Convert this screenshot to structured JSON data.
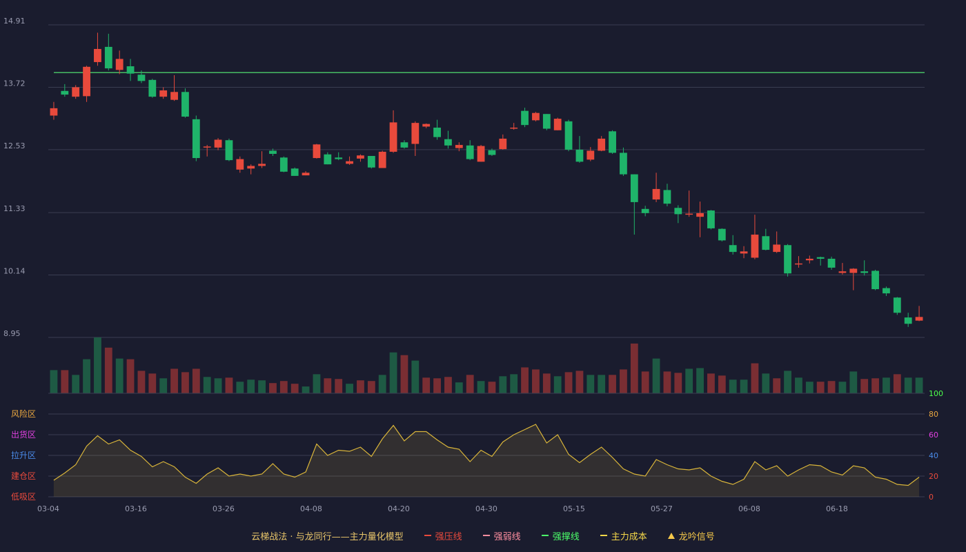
{
  "chart_data": [
    {
      "type": "candlestick",
      "y_ticks": [
        "14.91",
        "13.72",
        "12.53",
        "11.33",
        "10.14",
        "8.95"
      ],
      "ylim": [
        8.95,
        14.91
      ],
      "reference_line": {
        "value": 14.0,
        "color": "#4ccc6a"
      },
      "up_color": "#e84a3c",
      "down_color": "#1fb46a",
      "candles": [
        [
          13.18,
          13.32,
          13.1,
          13.44
        ],
        [
          13.65,
          13.58,
          13.54,
          13.78
        ],
        [
          13.54,
          13.72,
          13.5,
          13.76
        ],
        [
          13.55,
          14.11,
          13.44,
          14.13
        ],
        [
          14.2,
          14.45,
          14.13,
          14.76
        ],
        [
          14.49,
          14.08,
          14.04,
          14.74
        ],
        [
          14.05,
          14.26,
          13.97,
          14.42
        ],
        [
          14.12,
          13.98,
          13.84,
          14.26
        ],
        [
          13.96,
          13.84,
          13.8,
          14.04
        ],
        [
          13.86,
          13.54,
          13.52,
          13.88
        ],
        [
          13.54,
          13.66,
          13.5,
          13.72
        ],
        [
          13.48,
          13.63,
          13.46,
          13.95
        ],
        [
          13.63,
          13.16,
          13.14,
          13.7
        ],
        [
          13.11,
          12.37,
          12.31,
          13.18
        ],
        [
          12.58,
          12.59,
          12.4,
          12.62
        ],
        [
          12.57,
          12.72,
          12.52,
          12.75
        ],
        [
          12.71,
          12.33,
          12.31,
          12.74
        ],
        [
          12.15,
          12.35,
          12.09,
          12.4
        ],
        [
          12.17,
          12.22,
          12.06,
          12.25
        ],
        [
          12.22,
          12.26,
          12.18,
          12.5
        ],
        [
          12.51,
          12.45,
          12.41,
          12.55
        ],
        [
          12.38,
          12.11,
          12.1,
          12.4
        ],
        [
          12.17,
          12.03,
          12.03,
          12.19
        ],
        [
          12.04,
          12.09,
          12.04,
          12.12
        ],
        [
          12.37,
          12.63,
          12.36,
          12.64
        ],
        [
          12.44,
          12.25,
          12.25,
          12.48
        ],
        [
          12.38,
          12.35,
          12.33,
          12.48
        ],
        [
          12.26,
          12.31,
          12.24,
          12.4
        ],
        [
          12.36,
          12.42,
          12.3,
          12.44
        ],
        [
          12.41,
          12.19,
          12.17,
          12.41
        ],
        [
          12.18,
          12.49,
          12.18,
          12.51
        ],
        [
          12.49,
          13.05,
          12.47,
          13.28
        ],
        [
          12.67,
          12.57,
          12.55,
          12.71
        ],
        [
          12.64,
          13.04,
          12.41,
          13.07
        ],
        [
          12.97,
          13.02,
          12.94,
          13.03
        ],
        [
          12.95,
          12.77,
          12.72,
          13.1
        ],
        [
          12.73,
          12.61,
          12.55,
          12.89
        ],
        [
          12.56,
          12.62,
          12.5,
          12.67
        ],
        [
          12.61,
          12.35,
          12.33,
          12.71
        ],
        [
          12.3,
          12.6,
          12.3,
          12.62
        ],
        [
          12.52,
          12.43,
          12.41,
          12.55
        ],
        [
          12.54,
          12.74,
          12.53,
          12.82
        ],
        [
          12.94,
          12.95,
          12.91,
          13.04
        ],
        [
          13.27,
          13.0,
          12.96,
          13.33
        ],
        [
          13.09,
          13.23,
          13.07,
          13.25
        ],
        [
          13.21,
          12.93,
          12.9,
          13.21
        ],
        [
          12.9,
          13.12,
          12.9,
          13.14
        ],
        [
          13.07,
          12.53,
          12.5,
          13.1
        ],
        [
          12.53,
          12.3,
          12.28,
          12.79
        ],
        [
          12.34,
          12.51,
          12.31,
          12.58
        ],
        [
          12.51,
          12.74,
          12.5,
          12.79
        ],
        [
          12.88,
          12.47,
          12.45,
          12.9
        ],
        [
          12.47,
          12.06,
          12.03,
          12.57
        ],
        [
          12.06,
          11.53,
          10.91,
          12.06
        ],
        [
          11.4,
          11.32,
          11.26,
          11.46
        ],
        [
          11.58,
          11.78,
          11.53,
          12.09
        ],
        [
          11.76,
          11.5,
          11.45,
          11.88
        ],
        [
          11.42,
          11.3,
          11.13,
          11.47
        ],
        [
          11.3,
          11.31,
          11.25,
          11.75
        ],
        [
          11.25,
          11.32,
          10.86,
          11.54
        ],
        [
          11.37,
          11.03,
          11.01,
          11.38
        ],
        [
          11.02,
          10.8,
          10.78,
          11.03
        ],
        [
          10.71,
          10.58,
          10.53,
          10.9
        ],
        [
          10.55,
          10.59,
          10.46,
          10.69
        ],
        [
          10.47,
          10.91,
          10.44,
          11.29
        ],
        [
          10.88,
          10.62,
          10.61,
          11.02
        ],
        [
          10.58,
          10.72,
          10.56,
          10.97
        ],
        [
          10.71,
          10.17,
          10.11,
          10.73
        ],
        [
          10.35,
          10.36,
          10.28,
          10.5
        ],
        [
          10.42,
          10.45,
          10.36,
          10.51
        ],
        [
          10.48,
          10.45,
          10.32,
          10.49
        ],
        [
          10.45,
          10.28,
          10.24,
          10.49
        ],
        [
          10.18,
          10.21,
          10.15,
          10.37
        ],
        [
          10.18,
          10.26,
          9.85,
          10.27
        ],
        [
          10.21,
          10.18,
          10.13,
          10.42
        ],
        [
          10.22,
          9.87,
          9.85,
          10.24
        ],
        [
          9.89,
          9.79,
          9.74,
          9.92
        ],
        [
          9.71,
          9.42,
          9.38,
          9.72
        ],
        [
          9.33,
          9.21,
          9.15,
          9.42
        ],
        [
          9.27,
          9.34,
          9.26,
          9.55
        ]
      ],
      "volume": [
        [
          34,
          "d"
        ],
        [
          34,
          "u"
        ],
        [
          27,
          "d"
        ],
        [
          50,
          "d"
        ],
        [
          82,
          "d"
        ],
        [
          67,
          "u"
        ],
        [
          51,
          "d"
        ],
        [
          50,
          "u"
        ],
        [
          33,
          "u"
        ],
        [
          29,
          "u"
        ],
        [
          22,
          "d"
        ],
        [
          36,
          "u"
        ],
        [
          31,
          "u"
        ],
        [
          36,
          "u"
        ],
        [
          24,
          "d"
        ],
        [
          22,
          "d"
        ],
        [
          23,
          "u"
        ],
        [
          17,
          "d"
        ],
        [
          20,
          "d"
        ],
        [
          19,
          "d"
        ],
        [
          15,
          "u"
        ],
        [
          18,
          "u"
        ],
        [
          14,
          "u"
        ],
        [
          10,
          "d"
        ],
        [
          28,
          "d"
        ],
        [
          22,
          "u"
        ],
        [
          21,
          "u"
        ],
        [
          14,
          "d"
        ],
        [
          19,
          "u"
        ],
        [
          18,
          "u"
        ],
        [
          27,
          "d"
        ],
        [
          60,
          "d"
        ],
        [
          56,
          "u"
        ],
        [
          48,
          "d"
        ],
        [
          23,
          "u"
        ],
        [
          22,
          "u"
        ],
        [
          24,
          "u"
        ],
        [
          16,
          "d"
        ],
        [
          27,
          "u"
        ],
        [
          18,
          "d"
        ],
        [
          17,
          "u"
        ],
        [
          25,
          "d"
        ],
        [
          28,
          "d"
        ],
        [
          38,
          "u"
        ],
        [
          35,
          "u"
        ],
        [
          29,
          "u"
        ],
        [
          25,
          "d"
        ],
        [
          31,
          "u"
        ],
        [
          33,
          "u"
        ],
        [
          27,
          "d"
        ],
        [
          27,
          "d"
        ],
        [
          27,
          "u"
        ],
        [
          35,
          "u"
        ],
        [
          73,
          "u"
        ],
        [
          32,
          "u"
        ],
        [
          51,
          "d"
        ],
        [
          32,
          "u"
        ],
        [
          30,
          "u"
        ],
        [
          36,
          "d"
        ],
        [
          37,
          "d"
        ],
        [
          29,
          "u"
        ],
        [
          26,
          "u"
        ],
        [
          20,
          "d"
        ],
        [
          20,
          "d"
        ],
        [
          44,
          "u"
        ],
        [
          29,
          "d"
        ],
        [
          22,
          "u"
        ],
        [
          33,
          "d"
        ],
        [
          23,
          "d"
        ],
        [
          17,
          "d"
        ],
        [
          17,
          "u"
        ],
        [
          18,
          "u"
        ],
        [
          17,
          "d"
        ],
        [
          32,
          "d"
        ],
        [
          21,
          "u"
        ],
        [
          22,
          "u"
        ],
        [
          23,
          "d"
        ],
        [
          28,
          "u"
        ],
        [
          23,
          "d"
        ],
        [
          23,
          "d"
        ]
      ]
    },
    {
      "type": "area",
      "y_ticks": [
        "100",
        "80",
        "60",
        "40",
        "20",
        "0"
      ],
      "ylim": [
        0,
        100
      ],
      "zone_labels": [
        {
          "text": "风险区",
          "color": "#e8a640"
        },
        {
          "text": "出货区",
          "color": "#e040e0"
        },
        {
          "text": "拉升区",
          "color": "#4a8ae8"
        },
        {
          "text": "建仓区",
          "color": "#e84a3c"
        },
        {
          "text": "低吸区",
          "color": "#e84a3c"
        }
      ],
      "values": [
        16,
        23,
        31,
        49,
        59,
        51,
        55,
        45,
        39,
        29,
        34,
        29,
        19,
        13,
        22,
        28,
        20,
        22,
        20,
        22,
        32,
        22,
        19,
        24,
        51,
        40,
        45,
        44,
        48,
        39,
        56,
        69,
        54,
        63,
        63,
        55,
        48,
        46,
        34,
        45,
        39,
        53,
        60,
        65,
        70,
        52,
        60,
        41,
        33,
        41,
        48,
        38,
        27,
        22,
        20,
        36,
        31,
        27,
        26,
        28,
        20,
        15,
        12,
        17,
        34,
        26,
        30,
        20,
        26,
        31,
        30,
        24,
        21,
        30,
        28,
        19,
        17,
        12,
        11,
        19
      ],
      "line_color": "#d9b53a"
    }
  ],
  "x_ticks": [
    "03-04",
    "03-16",
    "03-26",
    "04-08",
    "04-20",
    "04-30",
    "05-15",
    "05-27",
    "06-08",
    "06-18"
  ],
  "legend": {
    "title": "云梯战法 · 与龙同行——主力量化模型",
    "items": [
      {
        "label": "强压线",
        "color": "#e84a3c"
      },
      {
        "label": "强弱线",
        "color": "#ff8fa0"
      },
      {
        "label": "强撑线",
        "color": "#4cff6a"
      },
      {
        "label": "主力成本",
        "color": "#f5d84a"
      },
      {
        "label": "龙吟信号",
        "color": "#f5c84a"
      }
    ]
  }
}
